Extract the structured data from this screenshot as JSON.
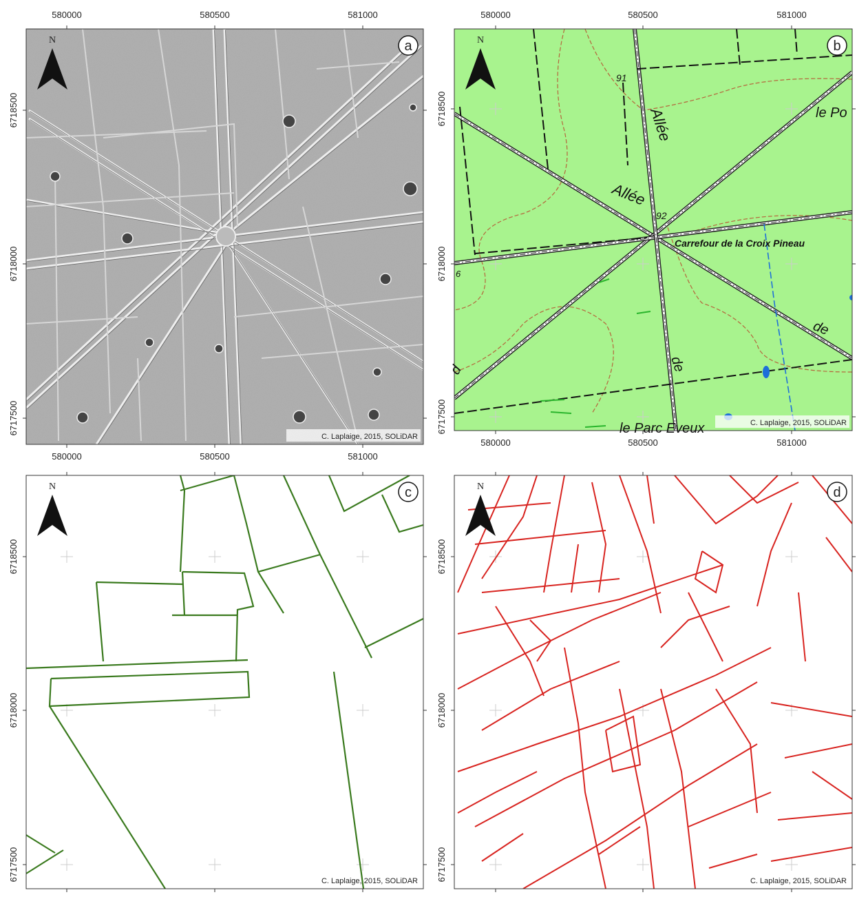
{
  "panels": [
    {
      "letter": "a",
      "north": "N",
      "credit": "C. Laplaige, 2015, SOLiDAR",
      "x_labels_top": [
        580000,
        580500,
        581000
      ],
      "x_labels_bottom": [
        580000,
        580500,
        581000
      ],
      "y_labels": [
        6718500,
        6718000,
        6717500
      ]
    },
    {
      "letter": "b",
      "north": "N",
      "credit": "C. Laplaige, 2015, SOLiDAR",
      "x_labels_top": [
        580000,
        580500,
        581000
      ],
      "x_labels_bottom": [
        580000,
        580500,
        581000
      ],
      "y_labels": [
        6718500,
        6718000,
        6717500
      ],
      "map_labels": [
        "Allée",
        "Allée",
        "le Po",
        "91",
        "92",
        "Carrefour de la Croix Pineau",
        "6",
        "de",
        "de",
        "d",
        "le Parc Eveux"
      ]
    },
    {
      "letter": "c",
      "north": "N",
      "credit": "C. Laplaige, 2015, SOLiDAR",
      "y_labels": [
        6718500,
        6718000,
        6717500
      ]
    },
    {
      "letter": "d",
      "north": "N",
      "credit": "C. Laplaige, 2015, SOLiDAR",
      "y_labels": [
        6718500,
        6718000,
        6717500
      ]
    }
  ]
}
